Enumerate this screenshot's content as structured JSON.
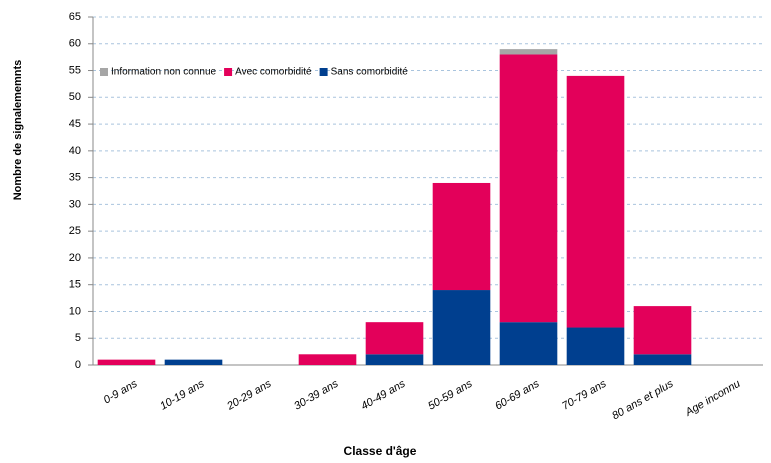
{
  "chart_data": {
    "type": "stacked_bar",
    "x_label": "Classe d'âge",
    "y_label": "Nombre de signalememnts",
    "categories": [
      "0-9 ans",
      "10-19 ans",
      "20-29 ans",
      "30-39 ans",
      "40-49 ans",
      "50-59 ans",
      "60-69 ans",
      "70-79 ans",
      "80 ans et plus",
      "Age inconnu"
    ],
    "series": [
      {
        "name": "Sans comorbidité",
        "color": "#003f8f",
        "values": [
          0,
          1,
          0,
          0,
          2,
          14,
          8,
          7,
          2,
          0
        ]
      },
      {
        "name": "Avec comorbidité",
        "color": "#e3005a",
        "values": [
          1,
          0,
          0,
          2,
          6,
          20,
          50,
          47,
          9,
          0
        ]
      },
      {
        "name": "Information non connue",
        "color": "#a6a6a6",
        "values": [
          0,
          0,
          0,
          0,
          0,
          0,
          1,
          0,
          0,
          0
        ]
      }
    ],
    "ylim": [
      0,
      65
    ],
    "yticks": [
      0,
      5,
      10,
      15,
      20,
      25,
      30,
      35,
      40,
      45,
      50,
      55,
      60,
      65
    ],
    "grid": true
  }
}
